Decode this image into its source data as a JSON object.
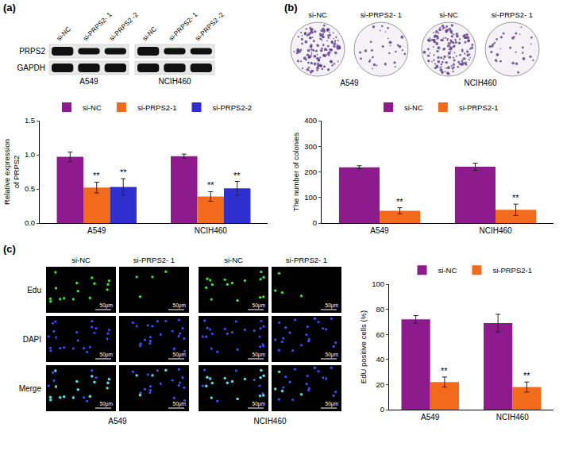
{
  "panels": [
    {
      "letter": "(a)",
      "blot": {
        "lanes": [
          "si-NC",
          "si-PRPS2- 1",
          "si-PRPS2 -2"
        ],
        "proteins": [
          "PRPS2",
          "GAPDH"
        ],
        "cell_lines": [
          "A549",
          "NCIH460"
        ]
      }
    },
    {
      "letter": "(b)",
      "colonies": {
        "conditions": [
          "si-NC",
          "si-PRPS2- 1"
        ],
        "cell_lines": [
          "A549",
          "NCIH460"
        ]
      }
    },
    {
      "letter": "(c)",
      "images": {
        "conditions": [
          "si-NC",
          "si-PRPS2- 1"
        ],
        "stains": [
          "Edu",
          "DAPI",
          "Merge"
        ],
        "cell_lines": [
          "A549",
          "NCIH460"
        ],
        "scale_bar": "50μm"
      }
    }
  ],
  "chart_data": [
    {
      "type": "bar",
      "y_label": "Relative expression of PRPS2",
      "categories": [
        "A549",
        "NCIH460"
      ],
      "series": [
        {
          "name": "si-NC",
          "color": "#8e1b8e",
          "values": [
            0.97,
            0.98
          ],
          "errors": [
            0.07,
            0.03
          ]
        },
        {
          "name": "si-PRPS2-1",
          "color": "#f26b1d",
          "values": [
            0.52,
            0.39
          ],
          "errors": [
            0.08,
            0.07
          ]
        },
        {
          "name": "si-PRPS2-2",
          "color": "#2f2fd0",
          "values": [
            0.53,
            0.51
          ],
          "errors": [
            0.12,
            0.1
          ]
        }
      ],
      "annotations": [
        {
          "text": "**",
          "series": "si-PRPS2-1",
          "category": "A549"
        },
        {
          "text": "**",
          "series": "si-PRPS2-2",
          "category": "A549"
        },
        {
          "text": "**",
          "series": "si-PRPS2-1",
          "category": "NCIH460"
        },
        {
          "text": "**",
          "series": "si-PRPS2-2",
          "category": "NCIH460"
        }
      ],
      "ylim": [
        0,
        1.5
      ],
      "yticks": [
        {
          "value": 0,
          "label": "0.0"
        },
        0.5,
        {
          "value": 1,
          "label": "1.0"
        },
        1.5
      ],
      "grid": false,
      "legend": "top"
    },
    {
      "type": "bar",
      "y_label": "The number of colonies",
      "categories": [
        "A549",
        "NCIH460"
      ],
      "series": [
        {
          "name": "si-NC",
          "color": "#8e1b8e",
          "values": [
            218,
            220
          ],
          "errors": [
            6,
            14
          ]
        },
        {
          "name": "si-PRPS2-1",
          "color": "#f26b1d",
          "values": [
            48,
            52
          ],
          "errors": [
            12,
            22
          ]
        }
      ],
      "annotations": [
        {
          "text": "**",
          "series": "si-PRPS2-1",
          "category": "A549"
        },
        {
          "text": "**",
          "series": "si-PRPS2-1",
          "category": "NCIH460"
        }
      ],
      "ylim": [
        0,
        400
      ],
      "yticks": [
        0,
        100,
        200,
        300,
        400
      ],
      "grid": false,
      "legend": "top"
    },
    {
      "type": "bar",
      "y_label": "EdU positive cells (%)",
      "categories": [
        "A549",
        "NCIH460"
      ],
      "series": [
        {
          "name": "si-NC",
          "color": "#8e1b8e",
          "values": [
            72,
            69
          ],
          "errors": [
            3,
            7
          ]
        },
        {
          "name": "si-PRPS2-1",
          "color": "#f26b1d",
          "values": [
            22,
            18
          ],
          "errors": [
            4,
            4
          ]
        }
      ],
      "annotations": [
        {
          "text": "**",
          "series": "si-PRPS2-1",
          "category": "A549"
        },
        {
          "text": "**",
          "series": "si-PRPS2-1",
          "category": "NCIH460"
        }
      ],
      "ylim": [
        0,
        100
      ],
      "yticks": [
        0,
        20,
        40,
        60,
        80,
        100
      ],
      "grid": false,
      "legend": "top"
    }
  ]
}
